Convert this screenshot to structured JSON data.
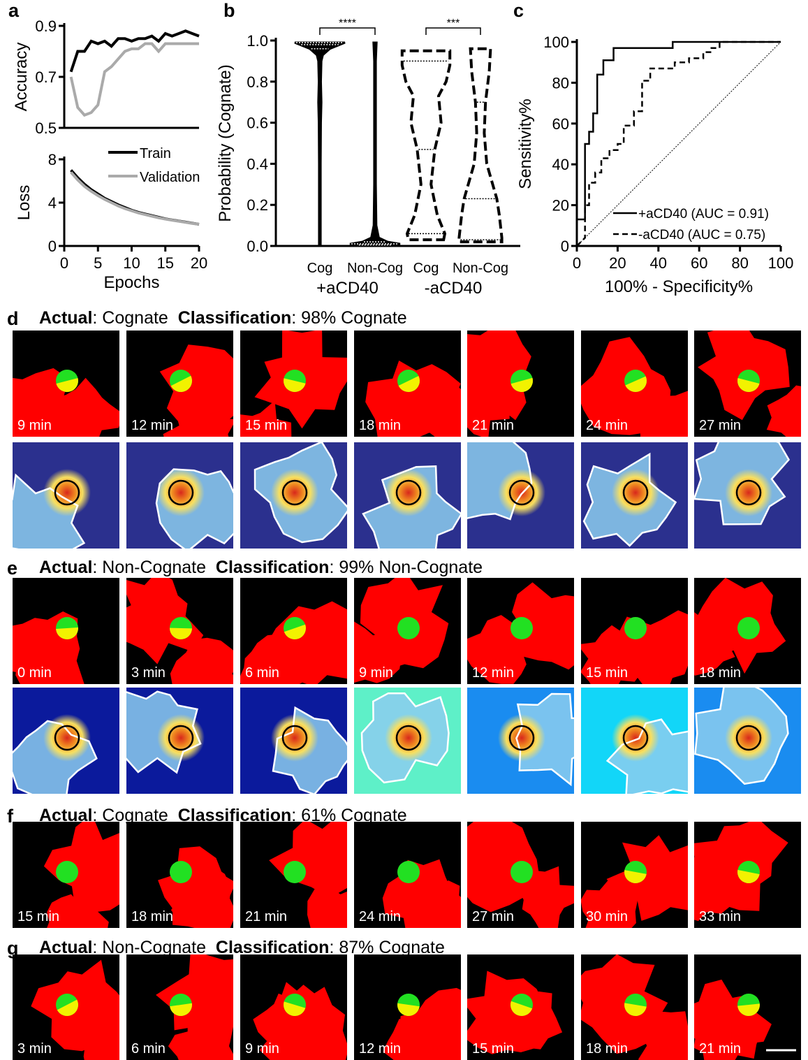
{
  "chart_data": [
    {
      "type": "line",
      "panel": "a",
      "ylabel": "Accuracy",
      "x": [
        1,
        2,
        3,
        4,
        5,
        6,
        7,
        8,
        9,
        10,
        11,
        12,
        13,
        14,
        15,
        16,
        17,
        18,
        19,
        20
      ],
      "xlim": [
        0,
        20
      ],
      "ylim": [
        0.5,
        0.9
      ],
      "yticks": [
        0.5,
        0.7,
        0.9
      ],
      "series": [
        {
          "color": "#000000",
          "values": [
            0.72,
            0.8,
            0.8,
            0.84,
            0.83,
            0.84,
            0.82,
            0.85,
            0.85,
            0.84,
            0.85,
            0.85,
            0.86,
            0.84,
            0.87,
            0.86,
            0.87,
            0.88,
            0.87,
            0.86
          ]
        },
        {
          "color": "#aaaaaa",
          "values": [
            0.7,
            0.58,
            0.55,
            0.56,
            0.59,
            0.72,
            0.74,
            0.77,
            0.8,
            0.81,
            0.81,
            0.83,
            0.83,
            0.8,
            0.83,
            0.83,
            0.83,
            0.83,
            0.83,
            0.83
          ]
        }
      ]
    },
    {
      "type": "line",
      "ylabel": "Loss",
      "xlabel": "Epochs",
      "x": [
        1,
        2,
        3,
        4,
        5,
        6,
        7,
        8,
        9,
        10,
        11,
        12,
        13,
        14,
        15,
        16,
        17,
        18,
        19,
        20
      ],
      "xlim": [
        0,
        20
      ],
      "xticks": [
        0,
        5,
        10,
        15,
        20
      ],
      "ylim": [
        0,
        8
      ],
      "yticks": [
        0,
        4,
        8
      ],
      "series": [
        {
          "name": "Train",
          "color": "#000000",
          "values": [
            7.0,
            6.3,
            5.7,
            5.2,
            4.8,
            4.4,
            4.1,
            3.8,
            3.55,
            3.3,
            3.1,
            2.95,
            2.8,
            2.65,
            2.5,
            2.4,
            2.3,
            2.2,
            2.1,
            2.0
          ]
        },
        {
          "name": "Validation",
          "color": "#aaaaaa",
          "values": [
            6.8,
            6.1,
            5.5,
            5.05,
            4.65,
            4.3,
            4.0,
            3.7,
            3.45,
            3.25,
            3.05,
            2.9,
            2.75,
            2.6,
            2.48,
            2.38,
            2.28,
            2.18,
            2.08,
            2.0
          ]
        }
      ]
    },
    {
      "type": "violin",
      "panel": "b",
      "ylabel": "Probability (Cognate)",
      "categories": [
        "Cog",
        "Non-Cog",
        "Cog",
        "Non-Cog"
      ],
      "groups": [
        "+aCD40",
        "-aCD40"
      ],
      "ylim": [
        0,
        1
      ],
      "yticks": [
        {
          "value": 0,
          "label": "0.0"
        },
        {
          "value": 0.2,
          "label": "0.2"
        },
        {
          "value": 0.4,
          "label": "0.4"
        },
        {
          "value": 0.6,
          "label": "0.6"
        },
        {
          "value": 0.8,
          "label": "0.8"
        },
        {
          "value": 1,
          "label": "1.0"
        }
      ],
      "significance": [
        "****",
        "***"
      ],
      "violins": [
        {
          "dashed": false,
          "levels": [
            0,
            0.2,
            0.4,
            0.6,
            0.7,
            0.8,
            0.9,
            0.93,
            0.96,
            0.99
          ],
          "density": [
            0.03,
            0.03,
            0.03,
            0.04,
            0.06,
            0.04,
            0.06,
            0.12,
            0.4,
            1.0
          ],
          "q1": 0.96,
          "median": 0.98,
          "q3": 0.99
        },
        {
          "dashed": false,
          "levels": [
            0,
            0.01,
            0.02,
            0.04,
            0.1,
            0.3,
            0.5,
            0.7,
            0.9,
            0.99
          ],
          "density": [
            0.4,
            1.0,
            0.5,
            0.15,
            0.05,
            0.03,
            0.03,
            0.03,
            0.03,
            0.06
          ],
          "q1": 0.005,
          "median": 0.01,
          "q3": 0.02
        },
        {
          "dashed": true,
          "levels": [
            0.03,
            0.06,
            0.15,
            0.3,
            0.47,
            0.6,
            0.73,
            0.8,
            0.88,
            0.95
          ],
          "density": [
            0.7,
            0.75,
            0.45,
            0.2,
            0.35,
            0.6,
            0.5,
            0.8,
            0.95,
            0.95
          ],
          "q1": 0.06,
          "median": 0.47,
          "q3": 0.9
        },
        {
          "dashed": true,
          "levels": [
            0.02,
            0.04,
            0.15,
            0.23,
            0.4,
            0.55,
            0.7,
            0.85,
            0.96
          ],
          "density": [
            0.85,
            0.85,
            0.75,
            0.65,
            0.25,
            0.15,
            0.2,
            0.35,
            0.4
          ],
          "q1": 0.03,
          "median": 0.23,
          "q3": 0.7
        }
      ]
    },
    {
      "type": "step",
      "panel": "c",
      "xlabel": "100% - Specificity%",
      "ylabel": "Sensitivity%",
      "xlim": [
        0,
        100
      ],
      "ylim": [
        0,
        100
      ],
      "xticks": [
        0,
        20,
        40,
        60,
        80,
        100
      ],
      "yticks": [
        0,
        20,
        40,
        60,
        80,
        100
      ],
      "series": [
        {
          "name": "+aCD40 (AUC = 0.91)",
          "dashed": false,
          "x": [
            0,
            0,
            4,
            4,
            6,
            6,
            8,
            8,
            10,
            10,
            13,
            13,
            18,
            18,
            47,
            47,
            100
          ],
          "values": [
            0,
            13,
            13,
            50,
            50,
            56,
            56,
            65,
            65,
            84,
            84,
            91,
            91,
            97,
            97,
            100,
            100
          ]
        },
        {
          "name": "-aCD40 (AUC = 0.75)",
          "dashed": true,
          "x": [
            0,
            2,
            4,
            4,
            6,
            6,
            9,
            9,
            12,
            12,
            16,
            16,
            20,
            20,
            23,
            23,
            28,
            28,
            32,
            32,
            36,
            36,
            48,
            48,
            55,
            55,
            62,
            62,
            66,
            66,
            70,
            70,
            100
          ],
          "values": [
            0,
            2,
            4,
            20,
            20,
            31,
            31,
            36,
            36,
            43,
            43,
            47,
            47,
            50,
            50,
            59,
            59,
            66,
            66,
            81,
            81,
            87,
            87,
            90,
            90,
            92,
            92,
            95,
            95,
            97,
            97,
            100,
            100
          ]
        }
      ]
    }
  ],
  "image_panels": [
    {
      "label": "d",
      "header": [
        {
          "text": "Actual",
          "bold": true
        },
        {
          "text": ": Cognate  "
        },
        {
          "text": "Classification",
          "bold": true
        },
        {
          "text": ": 98% Cognate"
        }
      ],
      "times": [
        "9 min",
        "12 min",
        "15 min",
        "18 min",
        "21 min",
        "24 min",
        "27 min"
      ],
      "heatmaps": true
    },
    {
      "label": "e",
      "header": [
        {
          "text": "Actual",
          "bold": true
        },
        {
          "text": ": Non-Cognate  "
        },
        {
          "text": "Classification",
          "bold": true
        },
        {
          "text": ": 99% Non-Cognate"
        }
      ],
      "times": [
        "0 min",
        "3 min",
        "6 min",
        "9 min",
        "12 min",
        "15 min",
        "18 min"
      ],
      "heatmaps": true
    },
    {
      "label": "f",
      "header": [
        {
          "text": "Actual",
          "bold": true
        },
        {
          "text": ": Cognate  "
        },
        {
          "text": "Classification",
          "bold": true
        },
        {
          "text": ": 61% Cognate"
        }
      ],
      "times": [
        "15 min",
        "18 min",
        "21 min",
        "24 min",
        "27 min",
        "30 min",
        "33 min"
      ],
      "heatmaps": false
    },
    {
      "label": "g",
      "header": [
        {
          "text": "Actual",
          "bold": true
        },
        {
          "text": ": Non-Cognate  "
        },
        {
          "text": "Classification",
          "bold": true
        },
        {
          "text": ": 87% Cognate"
        }
      ],
      "times": [
        "3 min",
        "6 min",
        "9 min",
        "12 min",
        "15 min",
        "18 min",
        "21 min"
      ],
      "heatmaps": false
    }
  ]
}
